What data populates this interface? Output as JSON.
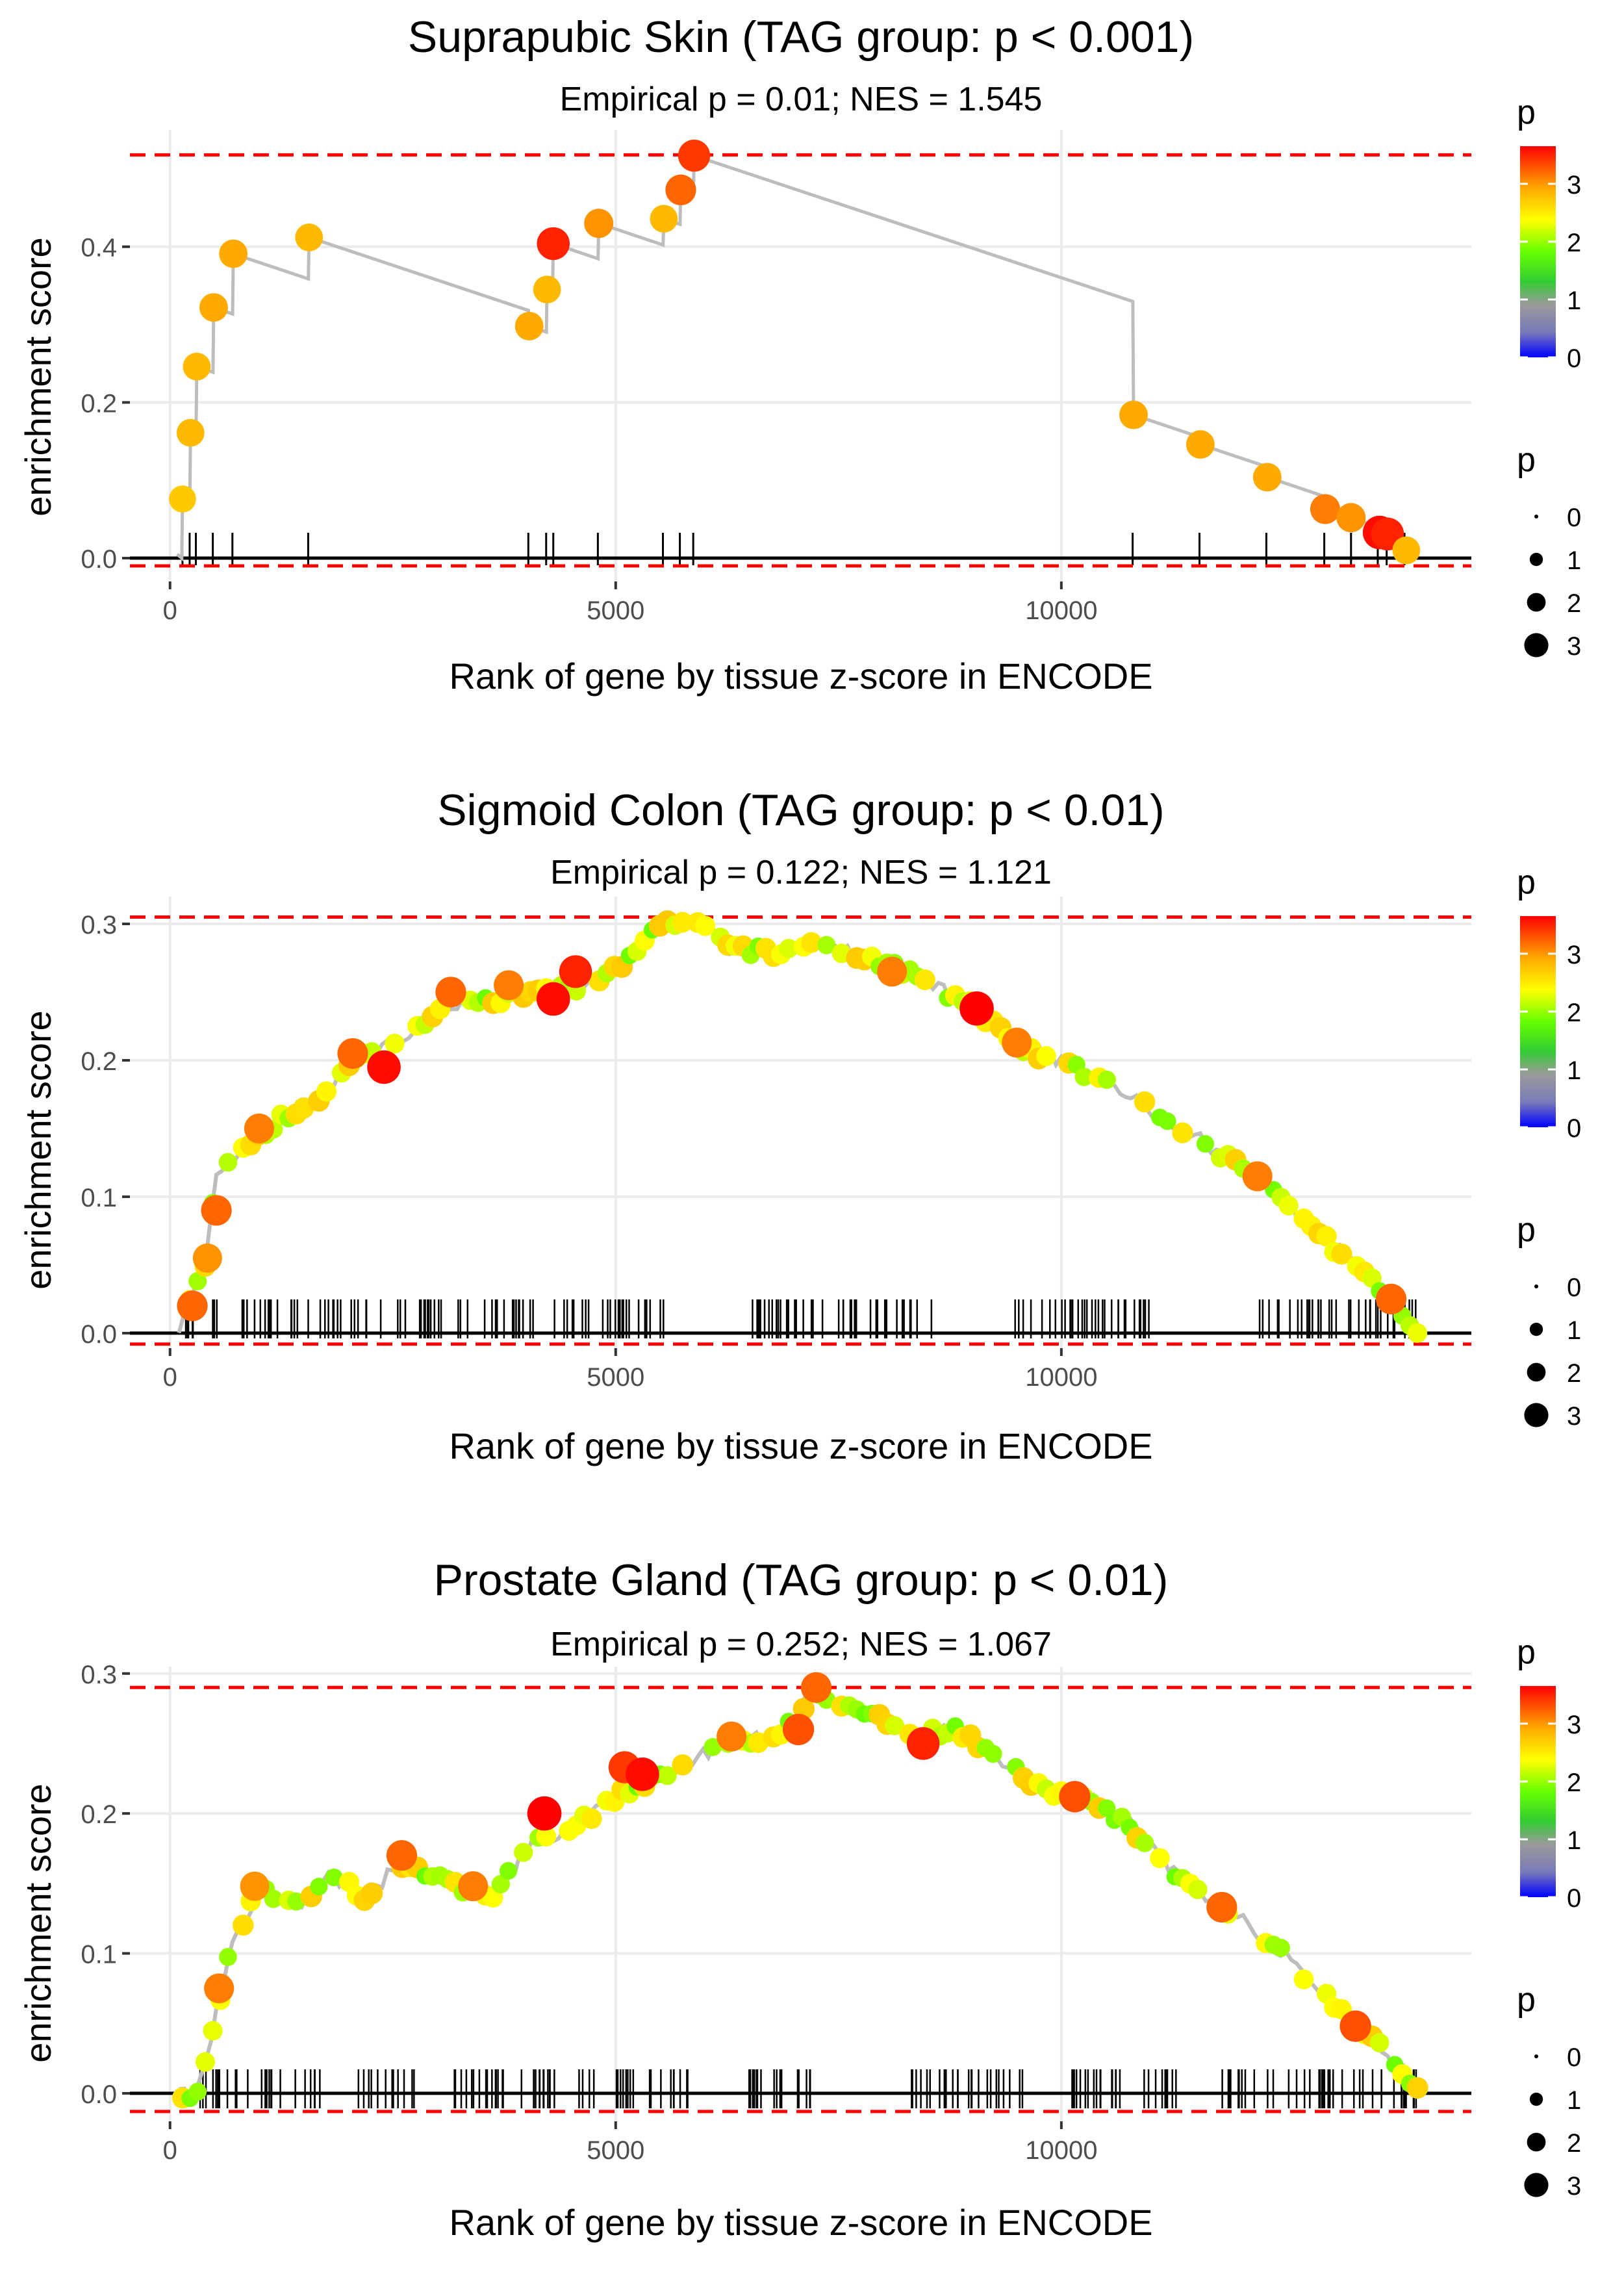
{
  "chart_data": [
    {
      "type": "scatter",
      "title": "Suprapubic Skin (TAG group: p < 0.001)",
      "subtitle": "Empirical p = 0.01; NES = 1.545",
      "xlabel": "Rank of gene by tissue z-score in ENCODE",
      "ylabel": "enrichment score",
      "xlim": [
        -450,
        14600
      ],
      "ylim": [
        -0.03,
        0.55
      ],
      "xticks": [
        0,
        5000,
        10000
      ],
      "xtick_labels": [
        "0",
        "5000",
        "10000"
      ],
      "yticks": [
        0.0,
        0.2,
        0.4
      ],
      "ytick_labels": [
        "0.0",
        "0.2",
        "0.4"
      ],
      "max_es": 0.518,
      "min_es": -0.01,
      "rug_x": [
        140,
        220,
        290,
        480,
        700,
        1550,
        4020,
        4220,
        4300,
        4800,
        5530,
        5720,
        5870,
        10800,
        11550,
        12300,
        12950,
        13250,
        13550,
        13650,
        13850
      ],
      "es_points": [
        {
          "x": 140,
          "y": 0.076,
          "p": 2.7
        },
        {
          "x": 230,
          "y": 0.161,
          "p": 2.8
        },
        {
          "x": 300,
          "y": 0.246,
          "p": 2.8
        },
        {
          "x": 490,
          "y": 0.322,
          "p": 2.9
        },
        {
          "x": 710,
          "y": 0.391,
          "p": 2.9
        },
        {
          "x": 1560,
          "y": 0.412,
          "p": 2.8
        },
        {
          "x": 4030,
          "y": 0.298,
          "p": 2.9
        },
        {
          "x": 4230,
          "y": 0.345,
          "p": 2.8
        },
        {
          "x": 4300,
          "y": 0.404,
          "p": 3.5
        },
        {
          "x": 4810,
          "y": 0.43,
          "p": 3.0
        },
        {
          "x": 5540,
          "y": 0.436,
          "p": 2.8
        },
        {
          "x": 5730,
          "y": 0.473,
          "p": 3.2
        },
        {
          "x": 5880,
          "y": 0.517,
          "p": 3.4
        },
        {
          "x": 10810,
          "y": 0.184,
          "p": 2.9
        },
        {
          "x": 11560,
          "y": 0.146,
          "p": 2.9
        },
        {
          "x": 12310,
          "y": 0.104,
          "p": 2.9
        },
        {
          "x": 12960,
          "y": 0.063,
          "p": 3.1
        },
        {
          "x": 13250,
          "y": 0.052,
          "p": 3.0
        },
        {
          "x": 13570,
          "y": 0.033,
          "p": 3.6
        },
        {
          "x": 13660,
          "y": 0.031,
          "p": 3.5
        },
        {
          "x": 13870,
          "y": 0.01,
          "p": 2.8
        }
      ],
      "legend_color": {
        "title": "p",
        "ticks": [
          "0",
          "1",
          "2",
          "3"
        ]
      },
      "legend_size": {
        "title": "p",
        "labels": [
          "0",
          "1",
          "2",
          "3"
        ]
      }
    },
    {
      "type": "scatter",
      "title": "Sigmoid Colon (TAG group: p < 0.01)",
      "subtitle": "Empirical p = 0.122; NES = 1.121",
      "xlabel": "Rank of gene by tissue z-score in ENCODE",
      "ylabel": "enrichment score",
      "xlim": [
        -450,
        14600
      ],
      "ylim": [
        -0.011,
        0.32
      ],
      "xticks": [
        0,
        5000,
        10000
      ],
      "xtick_labels": [
        "0",
        "5000",
        "10000"
      ],
      "yticks": [
        0.0,
        0.1,
        0.2,
        0.3
      ],
      "ytick_labels": [
        "0.0",
        "0.1",
        "0.2",
        "0.3"
      ],
      "max_es": 0.305,
      "min_es": -0.008,
      "es_curve": [
        [
          100,
          0.0
        ],
        [
          400,
          0.05
        ],
        [
          500,
          0.11
        ],
        [
          800,
          0.135
        ],
        [
          1200,
          0.155
        ],
        [
          1700,
          0.175
        ],
        [
          2100,
          0.2
        ],
        [
          2600,
          0.215
        ],
        [
          3100,
          0.24
        ],
        [
          3600,
          0.245
        ],
        [
          4200,
          0.25
        ],
        [
          4600,
          0.255
        ],
        [
          5100,
          0.27
        ],
        [
          5500,
          0.302
        ],
        [
          5900,
          0.302
        ],
        [
          6300,
          0.28
        ],
        [
          6800,
          0.28
        ],
        [
          7200,
          0.285
        ],
        [
          7600,
          0.28
        ],
        [
          8100,
          0.27
        ],
        [
          8700,
          0.25
        ],
        [
          9000,
          0.24
        ],
        [
          9500,
          0.21
        ],
        [
          10000,
          0.2
        ],
        [
          10600,
          0.18
        ],
        [
          11100,
          0.16
        ],
        [
          11600,
          0.14
        ],
        [
          12200,
          0.115
        ],
        [
          12700,
          0.085
        ],
        [
          13200,
          0.055
        ],
        [
          13600,
          0.03
        ],
        [
          14050,
          0.0
        ]
      ],
      "red_points": [
        {
          "x": 250,
          "y": 0.02,
          "p": 3.2
        },
        {
          "x": 420,
          "y": 0.055,
          "p": 3.0
        },
        {
          "x": 520,
          "y": 0.09,
          "p": 3.2
        },
        {
          "x": 1000,
          "y": 0.15,
          "p": 3.1
        },
        {
          "x": 2050,
          "y": 0.205,
          "p": 3.2
        },
        {
          "x": 2400,
          "y": 0.195,
          "p": 3.6
        },
        {
          "x": 3150,
          "y": 0.25,
          "p": 3.2
        },
        {
          "x": 3800,
          "y": 0.255,
          "p": 3.1
        },
        {
          "x": 4300,
          "y": 0.245,
          "p": 3.6
        },
        {
          "x": 4550,
          "y": 0.265,
          "p": 3.5
        },
        {
          "x": 8100,
          "y": 0.265,
          "p": 3.1
        },
        {
          "x": 9050,
          "y": 0.238,
          "p": 3.7
        },
        {
          "x": 9500,
          "y": 0.213,
          "p": 3.1
        },
        {
          "x": 12200,
          "y": 0.115,
          "p": 3.1
        },
        {
          "x": 13700,
          "y": 0.025,
          "p": 3.2
        }
      ],
      "legend_color": {
        "title": "p",
        "ticks": [
          "0",
          "1",
          "2",
          "3"
        ]
      },
      "legend_size": {
        "title": "p",
        "labels": [
          "0",
          "1",
          "2",
          "3"
        ]
      }
    },
    {
      "type": "scatter",
      "title": "Prostate Gland (TAG group: p < 0.01)",
      "subtitle": "Empirical p = 0.252; NES = 1.067",
      "xlabel": "Rank of gene by tissue z-score in ENCODE",
      "ylabel": "enrichment score",
      "xlim": [
        -450,
        14600
      ],
      "ylim": [
        -0.02,
        0.305
      ],
      "xticks": [
        0,
        5000,
        10000
      ],
      "xtick_labels": [
        "0",
        "5000",
        "10000"
      ],
      "yticks": [
        0.0,
        0.1,
        0.2,
        0.3
      ],
      "ytick_labels": [
        "0.0",
        "0.1",
        "0.2",
        "0.3"
      ],
      "max_es": 0.29,
      "min_es": -0.013,
      "es_curve": [
        [
          100,
          0.0
        ],
        [
          300,
          0.0
        ],
        [
          500,
          0.05
        ],
        [
          700,
          0.11
        ],
        [
          1000,
          0.145
        ],
        [
          1500,
          0.135
        ],
        [
          1800,
          0.155
        ],
        [
          2200,
          0.14
        ],
        [
          2600,
          0.165
        ],
        [
          3100,
          0.15
        ],
        [
          3600,
          0.14
        ],
        [
          4000,
          0.175
        ],
        [
          4500,
          0.19
        ],
        [
          5100,
          0.215
        ],
        [
          5600,
          0.23
        ],
        [
          6200,
          0.25
        ],
        [
          6800,
          0.255
        ],
        [
          7200,
          0.285
        ],
        [
          7700,
          0.275
        ],
        [
          8400,
          0.255
        ],
        [
          8800,
          0.26
        ],
        [
          9300,
          0.24
        ],
        [
          9800,
          0.215
        ],
        [
          10300,
          0.21
        ],
        [
          10800,
          0.19
        ],
        [
          11300,
          0.155
        ],
        [
          11800,
          0.135
        ],
        [
          12300,
          0.11
        ],
        [
          12800,
          0.08
        ],
        [
          13300,
          0.05
        ],
        [
          13700,
          0.025
        ],
        [
          14050,
          0.0
        ]
      ],
      "red_points": [
        {
          "x": 550,
          "y": 0.075,
          "p": 3.1
        },
        {
          "x": 950,
          "y": 0.148,
          "p": 3.0
        },
        {
          "x": 2600,
          "y": 0.17,
          "p": 3.2
        },
        {
          "x": 3400,
          "y": 0.148,
          "p": 3.1
        },
        {
          "x": 4200,
          "y": 0.2,
          "p": 3.7
        },
        {
          "x": 5100,
          "y": 0.233,
          "p": 3.4
        },
        {
          "x": 5300,
          "y": 0.228,
          "p": 3.6
        },
        {
          "x": 6300,
          "y": 0.255,
          "p": 3.1
        },
        {
          "x": 7050,
          "y": 0.26,
          "p": 3.3
        },
        {
          "x": 7250,
          "y": 0.29,
          "p": 3.2
        },
        {
          "x": 8450,
          "y": 0.25,
          "p": 3.5
        },
        {
          "x": 10150,
          "y": 0.212,
          "p": 3.3
        },
        {
          "x": 11800,
          "y": 0.133,
          "p": 3.2
        },
        {
          "x": 13300,
          "y": 0.048,
          "p": 3.3
        }
      ],
      "legend_color": {
        "title": "p",
        "ticks": [
          "0",
          "1",
          "2",
          "3"
        ]
      },
      "legend_size": {
        "title": "p",
        "labels": [
          "0",
          "1",
          "2",
          "3"
        ]
      }
    }
  ]
}
